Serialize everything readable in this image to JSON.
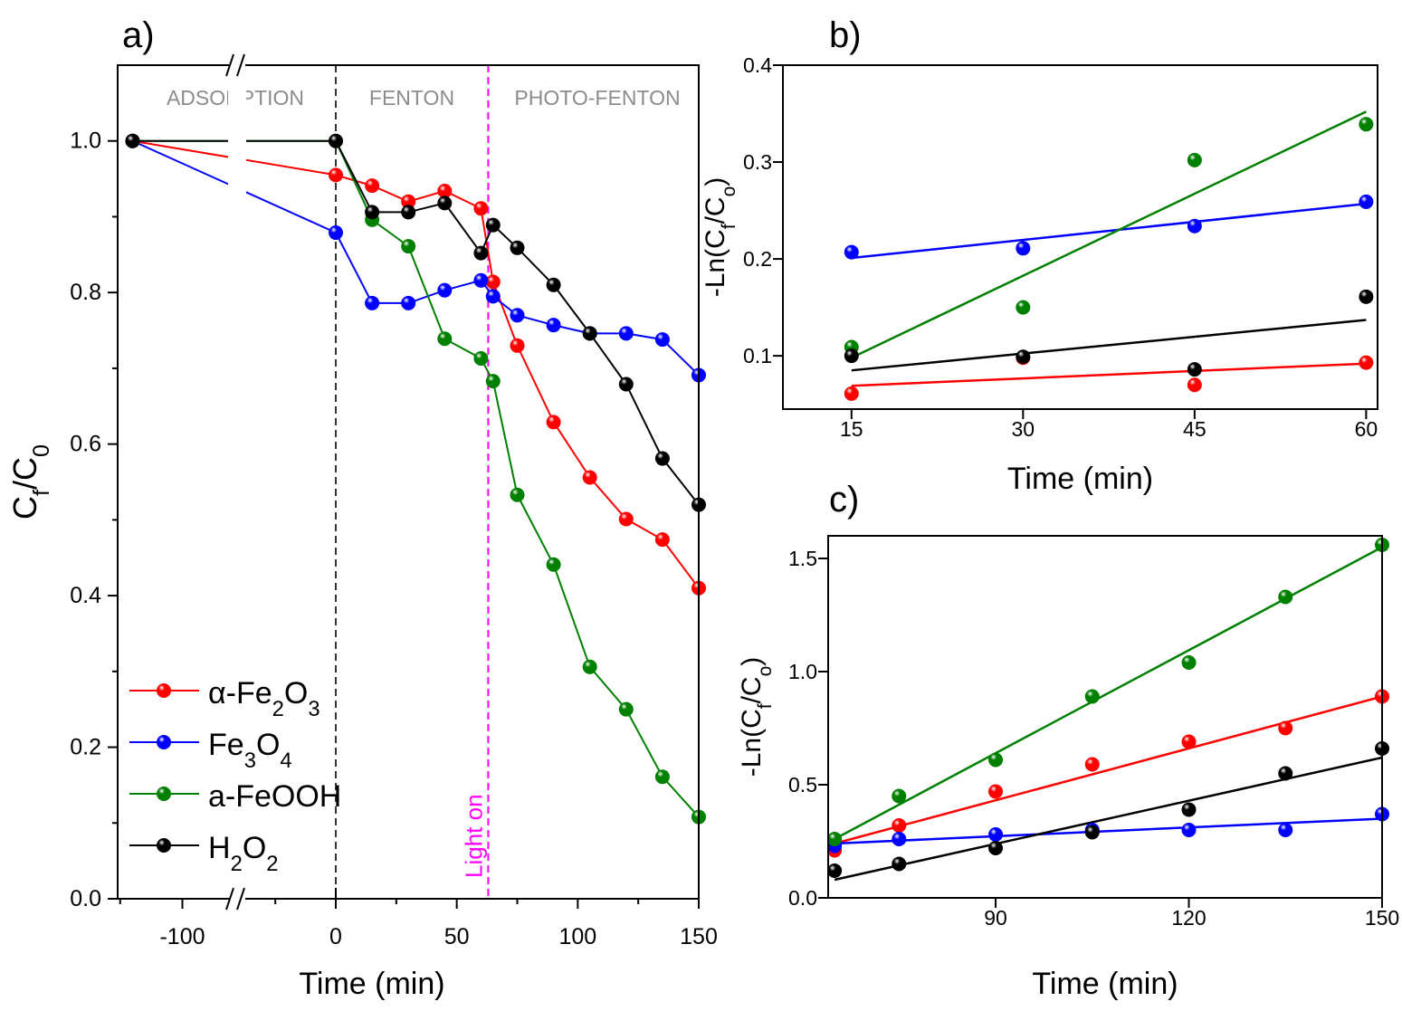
{
  "chart_data": [
    {
      "panel_label": "a)",
      "type": "line",
      "xlabel": [
        {
          "t": "Time (min)"
        }
      ],
      "ylabel": [
        {
          "t": "C"
        },
        {
          "t": "f",
          "sub": true
        },
        {
          "t": "/C"
        },
        {
          "t": "0",
          "sub": true
        }
      ],
      "xlim": [
        -126,
        150
      ],
      "x_axis_break": [
        -78,
        -42
      ],
      "ylim": [
        0,
        1.1
      ],
      "xticks": [
        -100,
        0,
        50,
        100,
        150
      ],
      "xtick_labels": [
        "-100",
        "0",
        "50",
        "100",
        "150"
      ],
      "yticks": [
        0,
        0.2,
        0.4,
        0.6,
        0.8,
        1.0
      ],
      "ytick_labels": [
        "0.0",
        "0.2",
        "0.4",
        "0.6",
        "0.8",
        "1.0"
      ],
      "region_labels": [
        "ADSORPTION",
        "FENTON",
        "PHOTO-FENTON"
      ],
      "vlines": [
        {
          "x": 0,
          "color": "#333333",
          "style": "dashed"
        },
        {
          "x": 63,
          "color": "#ff00ff",
          "style": "dashed",
          "label": "Light on"
        }
      ],
      "legend_placement": "bottom-left",
      "x": [
        -120,
        0,
        15,
        30,
        45,
        60,
        65,
        75,
        90,
        105,
        120,
        135,
        150
      ],
      "series": [
        {
          "name": [
            {
              "t": "α-Fe"
            },
            {
              "t": "2",
              "sub": true
            },
            {
              "t": "O"
            },
            {
              "t": "3",
              "sub": true
            }
          ],
          "color": "#ff0000",
          "values": [
            1.0,
            0.955,
            0.941,
            0.92,
            0.934,
            0.911,
            0.814,
            0.73,
            0.629,
            0.556,
            0.501,
            0.474,
            0.41
          ]
        },
        {
          "name": [
            {
              "t": "Fe"
            },
            {
              "t": "3",
              "sub": true
            },
            {
              "t": "O"
            },
            {
              "t": "4",
              "sub": true
            }
          ],
          "color": "#0000ff",
          "values": [
            1.0,
            0.879,
            0.786,
            0.786,
            0.803,
            0.816,
            0.795,
            0.77,
            0.757,
            0.746,
            0.746,
            0.738,
            0.691
          ]
        },
        {
          "name": [
            {
              "t": "a-FeOOH"
            }
          ],
          "color": "#008000",
          "values": [
            1.0,
            1.0,
            0.896,
            0.861,
            0.739,
            0.713,
            0.683,
            0.533,
            0.441,
            0.306,
            0.25,
            0.161,
            0.108
          ]
        },
        {
          "name": [
            {
              "t": "H"
            },
            {
              "t": "2",
              "sub": true
            },
            {
              "t": "O"
            },
            {
              "t": "2",
              "sub": true
            }
          ],
          "color": "#000000",
          "values": [
            1.0,
            1.0,
            0.906,
            0.906,
            0.918,
            0.852,
            0.889,
            0.859,
            0.81,
            0.746,
            0.679,
            0.581,
            0.52
          ]
        }
      ]
    },
    {
      "panel_label": "b)",
      "type": "scatter",
      "xlabel": [
        {
          "t": "Time (min)"
        }
      ],
      "ylabel": [
        {
          "t": "-Ln(C"
        },
        {
          "t": "f",
          "sub": true
        },
        {
          "t": "/C"
        },
        {
          "t": "o",
          "sub": true
        },
        {
          "t": ")"
        }
      ],
      "xlim": [
        9,
        61
      ],
      "ylim": [
        0.045,
        0.4
      ],
      "xticks": [
        15,
        30,
        45,
        60
      ],
      "xtick_labels": [
        "15",
        "30",
        "45",
        "60"
      ],
      "yticks": [
        0.1,
        0.2,
        0.3,
        0.4
      ],
      "ytick_labels": [
        "0.1",
        "0.2",
        "0.3",
        "0.4"
      ],
      "x": [
        15,
        30,
        45,
        60
      ],
      "series": [
        {
          "color": "#ff0000",
          "values": [
            0.061,
            0.098,
            0.07,
            0.093
          ],
          "fit": [
            0.069,
            0.092
          ]
        },
        {
          "color": "#0000ff",
          "values": [
            0.207,
            0.211,
            0.234,
            0.259
          ],
          "fit": [
            0.201,
            0.257
          ]
        },
        {
          "color": "#008000",
          "values": [
            0.109,
            0.15,
            0.302,
            0.339
          ],
          "fit": [
            0.098,
            0.352
          ]
        },
        {
          "color": "#000000",
          "values": [
            0.1,
            0.099,
            0.086,
            0.161
          ],
          "fit": [
            0.085,
            0.137
          ]
        }
      ]
    },
    {
      "panel_label": "c)",
      "type": "scatter",
      "xlabel": [
        {
          "t": "Time (min)"
        }
      ],
      "ylabel": [
        {
          "t": "-Ln(C"
        },
        {
          "t": "f",
          "sub": true
        },
        {
          "t": "/C"
        },
        {
          "t": "o",
          "sub": true
        },
        {
          "t": ")"
        }
      ],
      "xlim": [
        64,
        150
      ],
      "ylim": [
        0,
        1.6
      ],
      "xticks": [
        90,
        120,
        150
      ],
      "xtick_labels": [
        "90",
        "120",
        "150"
      ],
      "yticks": [
        0,
        0.5,
        1.0,
        1.5
      ],
      "ytick_labels": [
        "0.0",
        "0.5",
        "1.0",
        "1.5"
      ],
      "x": [
        65,
        75,
        90,
        105,
        120,
        135,
        150
      ],
      "series": [
        {
          "color": "#ff0000",
          "values": [
            0.21,
            0.32,
            0.47,
            0.59,
            0.69,
            0.75,
            0.89
          ],
          "fit": [
            0.24,
            0.89
          ]
        },
        {
          "color": "#0000ff",
          "values": [
            0.23,
            0.26,
            0.28,
            0.3,
            0.3,
            0.3,
            0.37
          ],
          "fit": [
            0.24,
            0.35
          ]
        },
        {
          "color": "#008000",
          "values": [
            0.26,
            0.45,
            0.61,
            0.89,
            1.04,
            1.33,
            1.56
          ],
          "fit": [
            0.26,
            1.55
          ]
        },
        {
          "color": "#000000",
          "values": [
            0.12,
            0.15,
            0.22,
            0.29,
            0.39,
            0.55,
            0.66
          ],
          "fit": [
            0.08,
            0.62
          ]
        }
      ]
    }
  ]
}
